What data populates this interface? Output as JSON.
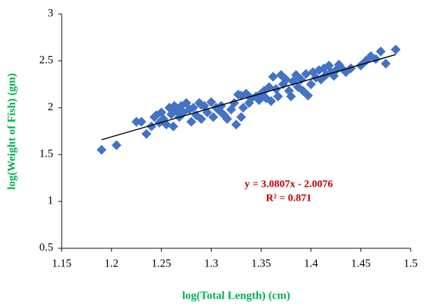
{
  "chart_data": {
    "type": "scatter",
    "x_label": "log(Total Length) (cm)",
    "y_label": "log(Weight of Fish) (gm)",
    "color": "#4472c4",
    "title_color": "#00b050",
    "xlim": [
      1.15,
      1.5
    ],
    "xticks": [
      1.15,
      1.2,
      1.25,
      1.3,
      1.35,
      1.4,
      1.45,
      1.5
    ],
    "ylim": [
      0.5,
      3
    ],
    "yticks": [
      0.5,
      1,
      1.5,
      2,
      2.5,
      3
    ],
    "grid": false,
    "x": [
      1.19,
      1.205,
      1.23,
      1.235,
      1.24,
      1.243,
      1.248,
      1.25,
      1.252,
      1.255,
      1.258,
      1.26,
      1.262,
      1.265,
      1.268,
      1.27,
      1.272,
      1.275,
      1.278,
      1.28,
      1.282,
      1.285,
      1.288,
      1.29,
      1.293,
      1.296,
      1.3,
      1.302,
      1.305,
      1.308,
      1.31,
      1.313,
      1.316,
      1.32,
      1.323,
      1.325,
      1.327,
      1.33,
      1.332,
      1.335,
      1.338,
      1.34,
      1.345,
      1.348,
      1.35,
      1.353,
      1.355,
      1.358,
      1.36,
      1.362,
      1.365,
      1.367,
      1.37,
      1.372,
      1.375,
      1.378,
      1.38,
      1.382,
      1.385,
      1.387,
      1.39,
      1.392,
      1.395,
      1.397,
      1.4,
      1.402,
      1.405,
      1.408,
      1.41,
      1.413,
      1.415,
      1.418,
      1.42,
      1.423,
      1.425,
      1.428,
      1.43,
      1.435,
      1.44,
      1.45,
      1.455,
      1.46,
      1.465,
      1.47,
      1.475,
      1.485,
      1.225,
      1.245,
      1.263,
      1.29,
      1.33
    ],
    "values": [
      1.55,
      1.6,
      1.85,
      1.72,
      1.8,
      1.9,
      1.84,
      1.95,
      1.88,
      1.82,
      2.0,
      1.93,
      1.8,
      1.97,
      1.9,
      2.02,
      1.95,
      2.05,
      1.98,
      1.85,
      2.0,
      1.92,
      2.05,
      1.88,
      2.02,
      1.95,
      2.06,
      1.9,
      2.0,
      1.97,
      2.02,
      1.92,
      1.88,
      1.98,
      2.05,
      1.82,
      2.14,
      1.9,
      2.0,
      2.15,
      2.05,
      2.1,
      2.12,
      2.08,
      2.15,
      2.18,
      2.1,
      2.22,
      2.07,
      2.33,
      2.2,
      2.12,
      2.35,
      2.25,
      2.3,
      2.18,
      2.12,
      2.28,
      2.35,
      2.22,
      2.3,
      2.18,
      2.36,
      2.13,
      2.25,
      2.38,
      2.32,
      2.4,
      2.3,
      2.42,
      2.35,
      2.45,
      2.38,
      2.34,
      2.4,
      2.46,
      2.43,
      2.38,
      2.42,
      2.45,
      2.5,
      2.55,
      2.52,
      2.6,
      2.47,
      2.62,
      1.85,
      1.92,
      2.02,
      2.03,
      2.13
    ],
    "trendline": {
      "color": "#000000",
      "label_color": "#c00000",
      "equation": "y = 3.0807x - 2.0076",
      "r_squared": "R² = 0.871",
      "x": [
        1.19,
        1.485
      ],
      "y": [
        1.658,
        2.567
      ]
    }
  }
}
